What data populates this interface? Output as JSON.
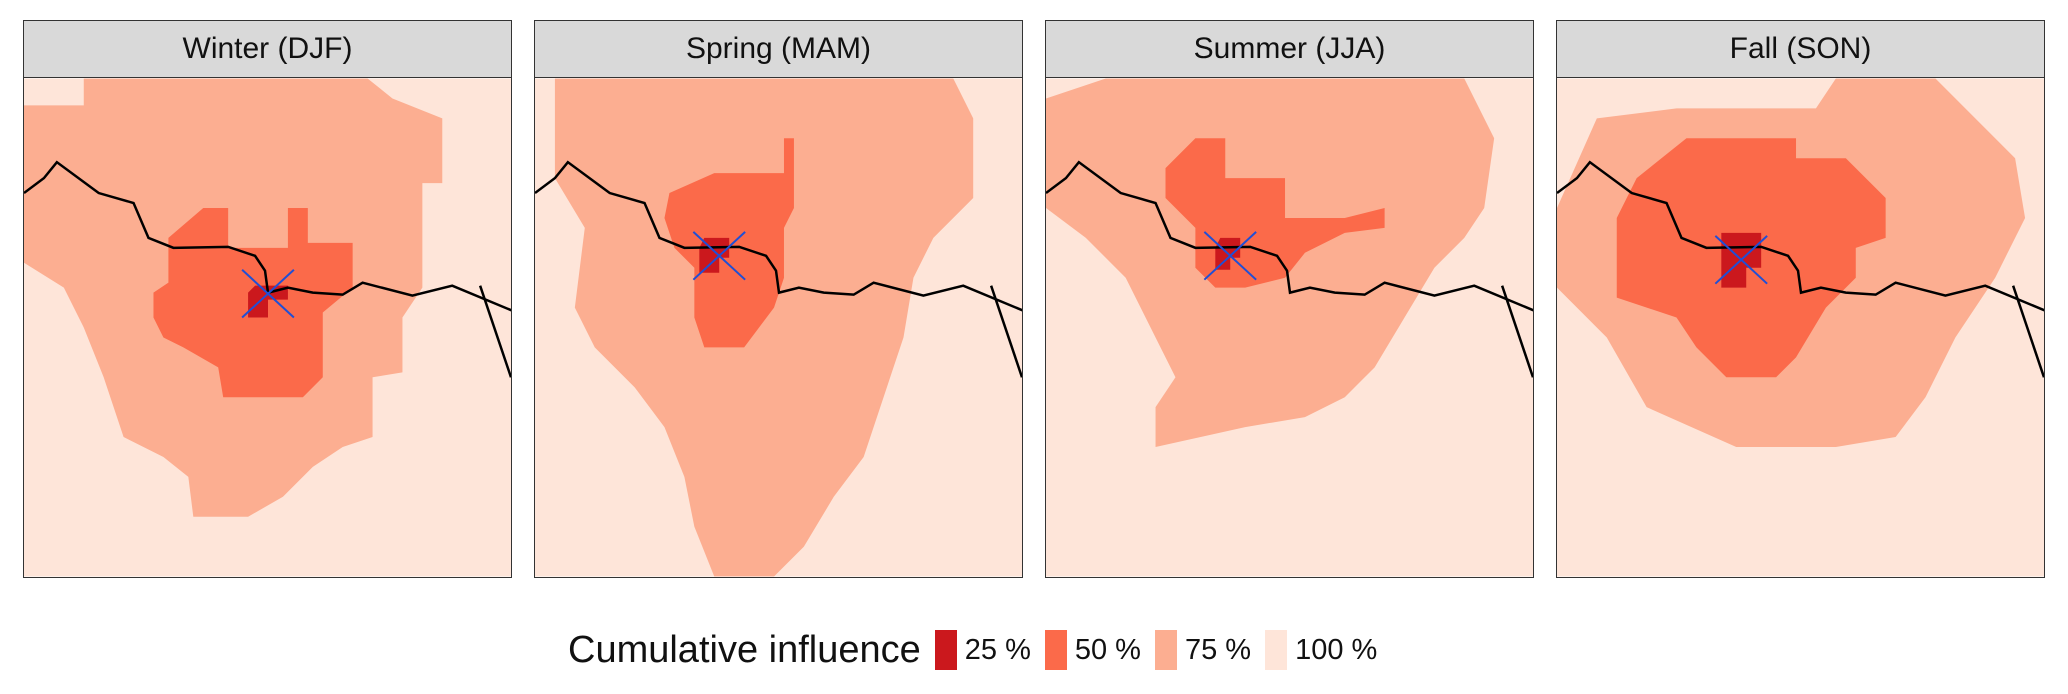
{
  "chart_data": {
    "type": "heatmap",
    "title": "",
    "panels": [
      {
        "label": "Winter (DJF)"
      },
      {
        "label": "Spring (MAM)"
      },
      {
        "label": "Summer (JJA)"
      },
      {
        "label": "Fall (SON)"
      }
    ],
    "legend": {
      "title": "Cumulative influence",
      "placement": "bottom",
      "levels": [
        {
          "label": "25 %",
          "color": "#cb181d"
        },
        {
          "label": "50 %",
          "color": "#fb6a4a"
        },
        {
          "label": "75 %",
          "color": "#fcae91"
        },
        {
          "label": "100 %",
          "color": "#fee5d9"
        }
      ]
    },
    "marker": {
      "symbol": "x",
      "color": "#1f4fd6"
    }
  }
}
